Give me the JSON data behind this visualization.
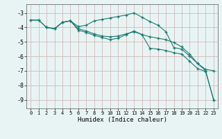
{
  "xlabel": "Humidex (Indice chaleur)",
  "background_color": "#e8f4f4",
  "grid_color": "#d4b8b8",
  "line_color": "#1a7a6e",
  "xlim": [
    -0.5,
    23.5
  ],
  "ylim": [
    -9.6,
    -2.4
  ],
  "xticks": [
    0,
    1,
    2,
    3,
    4,
    5,
    6,
    7,
    8,
    9,
    10,
    11,
    12,
    13,
    14,
    15,
    16,
    17,
    18,
    19,
    20,
    21,
    22,
    23
  ],
  "yticks": [
    -9,
    -8,
    -7,
    -6,
    -5,
    -4,
    -3
  ],
  "series": [
    {
      "x": [
        0,
        1,
        2,
        3,
        4,
        5,
        6,
        7,
        8,
        9,
        10,
        11,
        12,
        13,
        14,
        15,
        16,
        17,
        18,
        19,
        20,
        21,
        22,
        23
      ],
      "y": [
        -3.5,
        -3.5,
        -4.0,
        -4.1,
        -3.65,
        -3.55,
        -3.95,
        -3.85,
        -3.55,
        -3.45,
        -3.35,
        -3.25,
        -3.15,
        -3.0,
        -3.3,
        -3.6,
        -3.85,
        -4.3,
        -5.4,
        -5.5,
        -6.0,
        -6.5,
        -6.9,
        -7.0
      ]
    },
    {
      "x": [
        0,
        1,
        2,
        3,
        4,
        5,
        6,
        7,
        8,
        9,
        10,
        11,
        12,
        13,
        14,
        15,
        16,
        17,
        18,
        19,
        20,
        21,
        22,
        23
      ],
      "y": [
        -3.5,
        -3.5,
        -4.0,
        -4.1,
        -3.65,
        -3.55,
        -4.1,
        -4.25,
        -4.45,
        -4.6,
        -4.65,
        -4.6,
        -4.45,
        -4.3,
        -4.5,
        -4.65,
        -4.75,
        -4.85,
        -5.05,
        -5.35,
        -5.85,
        -6.5,
        -7.0,
        -9.0
      ]
    },
    {
      "x": [
        2,
        3,
        4,
        5,
        6,
        7,
        8,
        9,
        10,
        11,
        12,
        13,
        14,
        15,
        16,
        17,
        18,
        19,
        20,
        21,
        22,
        23
      ],
      "y": [
        -4.0,
        -4.1,
        -3.65,
        -3.55,
        -4.2,
        -4.35,
        -4.55,
        -4.7,
        -4.85,
        -4.75,
        -4.5,
        -4.25,
        -4.5,
        -5.45,
        -5.5,
        -5.6,
        -5.75,
        -5.85,
        -6.35,
        -6.85,
        -7.05,
        -9.0
      ]
    }
  ]
}
